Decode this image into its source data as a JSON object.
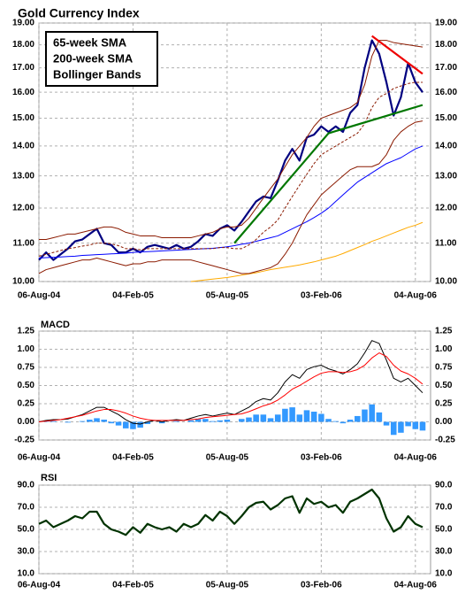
{
  "chart_data": [
    {
      "type": "line",
      "title": "Gold Currency Index",
      "log": true,
      "grid": true,
      "legend": "upper left",
      "x": [
        "06-Aug-04",
        "20-Aug-04",
        "03-Sep-04",
        "17-Sep-04",
        "01-Oct-04",
        "15-Oct-04",
        "29-Oct-04",
        "12-Nov-04",
        "26-Nov-04",
        "10-Dec-04",
        "24-Dec-04",
        "07-Jan-05",
        "21-Jan-05",
        "04-Feb-05",
        "18-Feb-05",
        "04-Mar-05",
        "18-Mar-05",
        "01-Apr-05",
        "15-Apr-05",
        "29-Apr-05",
        "13-May-05",
        "27-May-05",
        "10-Jun-05",
        "24-Jun-05",
        "08-Jul-05",
        "22-Jul-05",
        "05-Aug-05",
        "19-Aug-05",
        "02-Sep-05",
        "16-Sep-05",
        "30-Sep-05",
        "14-Oct-05",
        "28-Oct-05",
        "11-Nov-05",
        "25-Nov-05",
        "09-Dec-05",
        "23-Dec-05",
        "06-Jan-06",
        "20-Jan-06",
        "03-Feb-06",
        "17-Feb-06",
        "03-Mar-06",
        "17-Mar-06",
        "31-Mar-06",
        "14-Apr-06",
        "28-Apr-06",
        "12-May-06",
        "26-May-06",
        "09-Jun-06",
        "23-Jun-06",
        "07-Jul-06",
        "21-Jul-06",
        "04-Aug-06",
        "18-Aug-06"
      ],
      "xticks": [
        "06-Aug-04",
        "04-Feb-05",
        "05-Aug-05",
        "03-Feb-06",
        "04-Aug-06"
      ],
      "ylim": [
        10,
        19
      ],
      "yticks": [
        {
          "value": 10,
          "label": "10.00"
        },
        {
          "value": 11,
          "label": "11.00"
        },
        {
          "value": 12,
          "label": "12.00"
        },
        {
          "value": 13,
          "label": "13.00"
        },
        {
          "value": 14,
          "label": "14.00"
        },
        {
          "value": 15,
          "label": "15.00"
        },
        {
          "value": 16,
          "label": "16.00"
        },
        {
          "value": 17,
          "label": "17.00"
        },
        {
          "value": 18,
          "label": "18.00"
        },
        {
          "value": 19,
          "label": "19.00"
        }
      ],
      "series": [
        {
          "color": "#000080",
          "values": [
            10.55,
            10.75,
            10.55,
            10.7,
            10.85,
            11.05,
            11.1,
            11.25,
            11.4,
            11.0,
            10.95,
            10.75,
            10.75,
            10.85,
            10.75,
            10.9,
            10.95,
            10.9,
            10.85,
            10.95,
            10.85,
            10.9,
            11.05,
            11.25,
            11.2,
            11.4,
            11.5,
            11.35,
            11.6,
            11.9,
            12.2,
            12.35,
            12.3,
            12.85,
            13.5,
            13.9,
            13.5,
            14.3,
            14.4,
            14.7,
            14.5,
            14.7,
            14.5,
            15.2,
            15.5,
            17.0,
            18.2,
            17.6,
            16.4,
            15.1,
            15.8,
            17.2,
            16.4,
            16.0
          ]
        },
        {
          "name": "65-week SMA",
          "color": "#0000ff",
          "values": [
            10.6,
            10.61,
            10.62,
            10.63,
            10.64,
            10.65,
            10.67,
            10.68,
            10.69,
            10.7,
            10.71,
            10.72,
            10.73,
            10.75,
            10.76,
            10.77,
            10.78,
            10.79,
            10.8,
            10.81,
            10.82,
            10.83,
            10.84,
            10.85,
            10.86,
            10.88,
            10.9,
            10.93,
            10.97,
            11.0,
            11.05,
            11.1,
            11.15,
            11.2,
            11.3,
            11.4,
            11.5,
            11.6,
            11.72,
            11.85,
            12.0,
            12.2,
            12.4,
            12.6,
            12.8,
            12.95,
            13.1,
            13.25,
            13.4,
            13.5,
            13.6,
            13.75,
            13.9,
            14.0
          ]
        },
        {
          "name": "200-week SMA",
          "color": "#ffaa00",
          "values": [
            null,
            null,
            null,
            null,
            null,
            null,
            null,
            null,
            null,
            null,
            null,
            null,
            null,
            null,
            null,
            null,
            null,
            null,
            null,
            null,
            null,
            10.0,
            10.02,
            10.04,
            10.06,
            10.08,
            10.1,
            10.13,
            10.16,
            10.19,
            10.22,
            10.26,
            10.3,
            10.33,
            10.36,
            10.39,
            10.42,
            10.46,
            10.5,
            10.55,
            10.6,
            10.65,
            10.72,
            10.8,
            10.88,
            10.96,
            11.05,
            11.12,
            11.2,
            11.28,
            11.36,
            11.44,
            11.5,
            11.58
          ]
        },
        {
          "name": "Bollinger Bands",
          "color": "#8b1a00",
          "values": [
            10.65,
            10.7,
            10.75,
            10.8,
            10.85,
            10.88,
            10.92,
            10.95,
            11.0,
            11.0,
            10.98,
            10.93,
            10.85,
            10.85,
            10.82,
            10.85,
            10.85,
            10.85,
            10.85,
            10.85,
            10.85,
            10.85,
            10.85,
            10.85,
            10.85,
            10.88,
            10.88,
            10.85,
            10.85,
            10.95,
            11.1,
            11.3,
            11.45,
            11.65,
            12.0,
            12.35,
            12.7,
            13.05,
            13.4,
            13.7,
            13.85,
            14.0,
            14.15,
            14.3,
            14.45,
            14.8,
            15.4,
            15.8,
            15.95,
            16.15,
            16.25,
            16.35,
            16.4,
            16.4
          ],
          "upper": [
            11.1,
            11.1,
            11.15,
            11.2,
            11.25,
            11.25,
            11.3,
            11.35,
            11.4,
            11.45,
            11.45,
            11.4,
            11.3,
            11.25,
            11.2,
            11.2,
            11.2,
            11.15,
            11.15,
            11.15,
            11.15,
            11.15,
            11.2,
            11.25,
            11.3,
            11.4,
            11.45,
            11.45,
            11.5,
            11.7,
            12.0,
            12.3,
            12.6,
            12.9,
            13.3,
            13.7,
            14.0,
            14.3,
            14.7,
            15.0,
            15.1,
            15.2,
            15.3,
            15.4,
            15.6,
            16.3,
            17.5,
            18.2,
            18.2,
            18.1,
            18.05,
            18.0,
            17.95,
            17.9
          ],
          "lower": [
            10.2,
            10.3,
            10.35,
            10.4,
            10.45,
            10.5,
            10.55,
            10.55,
            10.6,
            10.55,
            10.5,
            10.45,
            10.4,
            10.45,
            10.45,
            10.5,
            10.5,
            10.55,
            10.55,
            10.55,
            10.55,
            10.55,
            10.5,
            10.45,
            10.4,
            10.35,
            10.3,
            10.25,
            10.2,
            10.2,
            10.25,
            10.3,
            10.35,
            10.45,
            10.7,
            11.0,
            11.4,
            11.8,
            12.1,
            12.4,
            12.6,
            12.8,
            13.0,
            13.2,
            13.3,
            13.3,
            13.3,
            13.4,
            13.7,
            14.2,
            14.5,
            14.7,
            14.85,
            14.9
          ]
        }
      ],
      "trendlines": [
        {
          "color": "#007700",
          "points": [
            [
              "19-Aug-05",
              11.0
            ],
            [
              "17-Feb-06",
              14.45
            ],
            [
              "18-Aug-06",
              15.5
            ]
          ]
        },
        {
          "color": "#ee0000",
          "points": [
            [
              "12-May-06",
              18.4
            ],
            [
              "18-Aug-06",
              16.75
            ]
          ]
        }
      ]
    },
    {
      "type": "line",
      "title": "MACD",
      "grid": true,
      "x": [
        "06-Aug-04",
        "20-Aug-04",
        "03-Sep-04",
        "17-Sep-04",
        "01-Oct-04",
        "15-Oct-04",
        "29-Oct-04",
        "12-Nov-04",
        "26-Nov-04",
        "10-Dec-04",
        "24-Dec-04",
        "07-Jan-05",
        "21-Jan-05",
        "04-Feb-05",
        "18-Feb-05",
        "04-Mar-05",
        "18-Mar-05",
        "01-Apr-05",
        "15-Apr-05",
        "29-Apr-05",
        "13-May-05",
        "27-May-05",
        "10-Jun-05",
        "24-Jun-05",
        "08-Jul-05",
        "22-Jul-05",
        "05-Aug-05",
        "19-Aug-05",
        "02-Sep-05",
        "16-Sep-05",
        "30-Sep-05",
        "14-Oct-05",
        "28-Oct-05",
        "11-Nov-05",
        "25-Nov-05",
        "09-Dec-05",
        "23-Dec-05",
        "06-Jan-06",
        "20-Jan-06",
        "03-Feb-06",
        "17-Feb-06",
        "03-Mar-06",
        "17-Mar-06",
        "31-Mar-06",
        "14-Apr-06",
        "28-Apr-06",
        "12-May-06",
        "26-May-06",
        "09-Jun-06",
        "23-Jun-06",
        "07-Jul-06",
        "21-Jul-06",
        "04-Aug-06",
        "18-Aug-06"
      ],
      "xticks": [
        "06-Aug-04",
        "04-Feb-05",
        "05-Aug-05",
        "03-Feb-06",
        "04-Aug-06"
      ],
      "ylim": [
        -0.25,
        1.25
      ],
      "yticks": [
        -0.25,
        {
          "value": 0,
          "label": "0.00"
        },
        0.25,
        {
          "value": 0.5,
          "label": "0.50"
        },
        0.75,
        {
          "value": 1,
          "label": "1.00"
        },
        1.25
      ],
      "series": [
        {
          "type": "bar",
          "color": "#3399ff",
          "values": [
            0,
            0.01,
            0.01,
            0,
            -0.01,
            0,
            0.01,
            0.03,
            0.05,
            0.03,
            -0.02,
            -0.05,
            -0.09,
            -0.1,
            -0.08,
            -0.03,
            0,
            -0.02,
            0,
            0.01,
            0,
            0.02,
            0.04,
            0.04,
            0.01,
            0.02,
            0.03,
            0,
            0.04,
            0.06,
            0.1,
            0.1,
            0.05,
            0.1,
            0.18,
            0.2,
            0.1,
            0.16,
            0.14,
            0.11,
            0.04,
            0.01,
            -0.02,
            0.03,
            0.08,
            0.17,
            0.24,
            0.13,
            -0.05,
            -0.18,
            -0.15,
            -0.06,
            -0.1,
            -0.12
          ]
        },
        {
          "color": "#000000",
          "values": [
            0,
            0.02,
            0.03,
            0.03,
            0.04,
            0.07,
            0.1,
            0.15,
            0.2,
            0.2,
            0.15,
            0.1,
            0.03,
            -0.02,
            -0.03,
            0,
            0.02,
            0,
            0.02,
            0.03,
            0.02,
            0.05,
            0.08,
            0.1,
            0.08,
            0.1,
            0.12,
            0.1,
            0.15,
            0.2,
            0.28,
            0.32,
            0.3,
            0.4,
            0.55,
            0.65,
            0.6,
            0.72,
            0.76,
            0.78,
            0.73,
            0.7,
            0.66,
            0.72,
            0.8,
            0.95,
            1.12,
            1.08,
            0.85,
            0.6,
            0.55,
            0.6,
            0.5,
            0.4
          ]
        },
        {
          "color": "#ff0000",
          "values": [
            0,
            0.01,
            0.02,
            0.03,
            0.05,
            0.07,
            0.09,
            0.12,
            0.15,
            0.17,
            0.17,
            0.15,
            0.12,
            0.08,
            0.05,
            0.03,
            0.02,
            0.02,
            0.02,
            0.02,
            0.02,
            0.03,
            0.04,
            0.06,
            0.07,
            0.08,
            0.09,
            0.1,
            0.11,
            0.14,
            0.18,
            0.22,
            0.25,
            0.3,
            0.37,
            0.45,
            0.5,
            0.56,
            0.62,
            0.67,
            0.69,
            0.69,
            0.68,
            0.69,
            0.72,
            0.78,
            0.88,
            0.95,
            0.9,
            0.78,
            0.7,
            0.66,
            0.6,
            0.52
          ]
        }
      ]
    },
    {
      "type": "line",
      "title": "RSI",
      "grid": true,
      "x": [
        "06-Aug-04",
        "20-Aug-04",
        "03-Sep-04",
        "17-Sep-04",
        "01-Oct-04",
        "15-Oct-04",
        "29-Oct-04",
        "12-Nov-04",
        "26-Nov-04",
        "10-Dec-04",
        "24-Dec-04",
        "07-Jan-05",
        "21-Jan-05",
        "04-Feb-05",
        "18-Feb-05",
        "04-Mar-05",
        "18-Mar-05",
        "01-Apr-05",
        "15-Apr-05",
        "29-Apr-05",
        "13-May-05",
        "27-May-05",
        "10-Jun-05",
        "24-Jun-05",
        "08-Jul-05",
        "22-Jul-05",
        "05-Aug-05",
        "19-Aug-05",
        "02-Sep-05",
        "16-Sep-05",
        "30-Sep-05",
        "14-Oct-05",
        "28-Oct-05",
        "11-Nov-05",
        "25-Nov-05",
        "09-Dec-05",
        "23-Dec-05",
        "06-Jan-06",
        "20-Jan-06",
        "03-Feb-06",
        "17-Feb-06",
        "03-Mar-06",
        "17-Mar-06",
        "31-Mar-06",
        "14-Apr-06",
        "28-Apr-06",
        "12-May-06",
        "26-May-06",
        "09-Jun-06",
        "23-Jun-06",
        "07-Jul-06",
        "21-Jul-06",
        "04-Aug-06",
        "18-Aug-06"
      ],
      "xticks": [
        "06-Aug-04",
        "04-Feb-05",
        "05-Aug-05",
        "03-Feb-06",
        "04-Aug-06"
      ],
      "ylim": [
        10,
        90
      ],
      "yticks": [
        {
          "value": 10,
          "label": "10.0"
        },
        {
          "value": 30,
          "label": "30.0"
        },
        {
          "value": 50,
          "label": "50.0"
        },
        {
          "value": 70,
          "label": "70.0"
        },
        {
          "value": 90,
          "label": "90.0"
        }
      ],
      "series": [
        {
          "color": "#003300",
          "values": [
            55,
            58,
            52,
            55,
            58,
            62,
            60,
            66,
            66,
            55,
            50,
            48,
            45,
            52,
            47,
            55,
            52,
            50,
            52,
            48,
            55,
            52,
            55,
            63,
            58,
            66,
            62,
            55,
            62,
            70,
            74,
            75,
            68,
            72,
            78,
            80,
            65,
            78,
            73,
            75,
            70,
            72,
            65,
            75,
            78,
            82,
            86,
            78,
            60,
            48,
            52,
            62,
            55,
            52
          ]
        }
      ]
    }
  ]
}
